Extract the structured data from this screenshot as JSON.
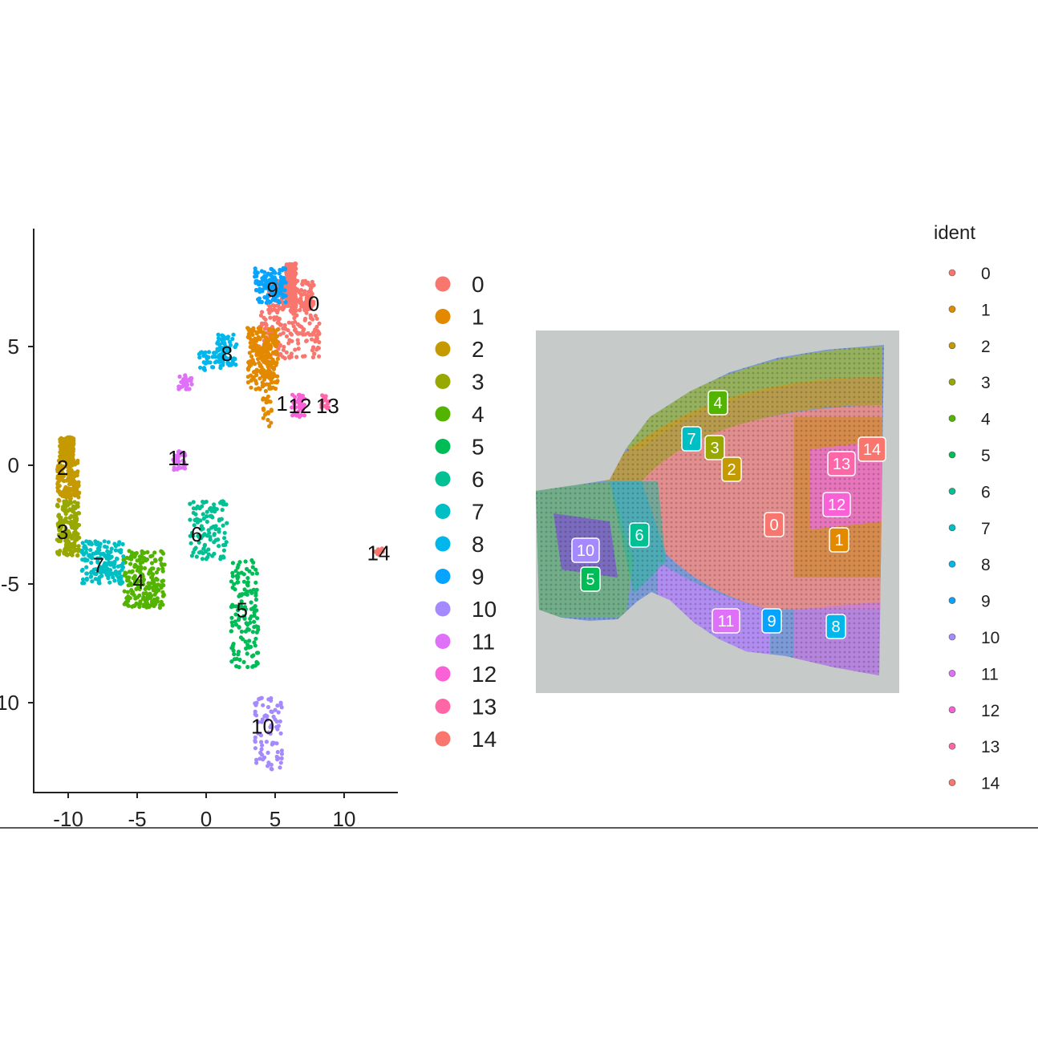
{
  "colors": {
    "0": "#F8766D",
    "1": "#E38900",
    "2": "#C49A00",
    "3": "#99A800",
    "4": "#53B400",
    "5": "#00BC56",
    "6": "#00C094",
    "7": "#00BFC4",
    "8": "#00B6EB",
    "9": "#06A4FF",
    "10": "#A58AFF",
    "11": "#DF70F8",
    "12": "#FB61D7",
    "13": "#FF66A8",
    "14": "#F8766D"
  },
  "chart_data": [
    {
      "type": "scatter",
      "title": "",
      "xlabel": "",
      "ylabel": "",
      "xlim": [
        -12.5,
        13.5
      ],
      "ylim": [
        -13.7,
        9.8
      ],
      "x_ticks": [
        -10,
        -5,
        0,
        5,
        10
      ],
      "x_tick_labels": [
        "-10",
        "-5",
        "0",
        "5",
        "10"
      ],
      "y_ticks": [
        5,
        0,
        -5,
        -10
      ],
      "y_tick_labels": [
        "5",
        "0",
        "-5",
        "-10"
      ],
      "legend": {
        "placement": "right",
        "entries": [
          "0",
          "1",
          "2",
          "3",
          "4",
          "5",
          "6",
          "7",
          "8",
          "9",
          "10",
          "11",
          "12",
          "13",
          "14"
        ]
      },
      "clusters": [
        {
          "name": "0",
          "label_x": 7.8,
          "label_y": 6.8
        },
        {
          "name": "1",
          "label_x": 5.5,
          "label_y": 2.6
        },
        {
          "name": "2",
          "label_x": -10.4,
          "label_y": -0.1
        },
        {
          "name": "3",
          "label_x": -10.4,
          "label_y": -2.8
        },
        {
          "name": "4",
          "label_x": -4.9,
          "label_y": -4.9
        },
        {
          "name": "5",
          "label_x": 2.6,
          "label_y": -6.1
        },
        {
          "name": "6",
          "label_x": -0.7,
          "label_y": -2.9
        },
        {
          "name": "7",
          "label_x": -7.8,
          "label_y": -4.2
        },
        {
          "name": "8",
          "label_x": 1.5,
          "label_y": 4.7
        },
        {
          "name": "9",
          "label_x": 4.8,
          "label_y": 7.4
        },
        {
          "name": "10",
          "label_x": 4.1,
          "label_y": -11.0
        },
        {
          "name": "11",
          "label_x": -2.0,
          "label_y": 0.3
        },
        {
          "name": "12",
          "label_x": 6.8,
          "label_y": 2.5
        },
        {
          "name": "13",
          "label_x": 8.8,
          "label_y": 2.5
        },
        {
          "name": "14",
          "label_x": 12.5,
          "label_y": -3.7
        }
      ]
    },
    {
      "type": "spatial",
      "legend": {
        "title": "ident",
        "placement": "right",
        "entries": [
          "0",
          "1",
          "2",
          "3",
          "4",
          "5",
          "6",
          "7",
          "8",
          "9",
          "10",
          "11",
          "12",
          "13",
          "14"
        ]
      },
      "region_labels": [
        "4",
        "7",
        "3",
        "2",
        "13",
        "14",
        "12",
        "0",
        "1",
        "6",
        "10",
        "5",
        "11",
        "9",
        "8"
      ]
    }
  ]
}
